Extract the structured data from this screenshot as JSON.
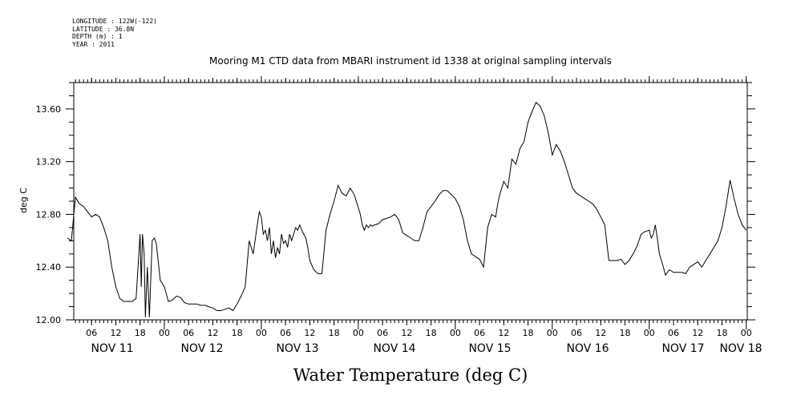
{
  "meta": {
    "longitude": "LONGITUDE : 122W(-122)",
    "latitude": "LATITUDE : 36.8N",
    "depth": "DEPTH (m) : 1",
    "year": "YEAR : 2011"
  },
  "chart_data": {
    "type": "line",
    "title": "Mooring M1 CTD data from MBARI instrument id 1338 at original sampling intervals",
    "xlabel": "Water Temperature (deg C)",
    "ylabel": "deg C",
    "ylim": [
      12.0,
      13.8
    ],
    "yticks": [
      12.0,
      12.4,
      12.8,
      13.2,
      13.6
    ],
    "ytick_labels": [
      "12.00",
      "12.40",
      "12.80",
      "13.20",
      "13.60"
    ],
    "xlim_hours": [
      0,
      170
    ],
    "hour_tick_labels": [
      "06",
      "12",
      "18",
      "00",
      "06",
      "12",
      "18",
      "00",
      "06",
      "12",
      "18",
      "00",
      "06",
      "12",
      "18",
      "00",
      "06",
      "12",
      "18",
      "00",
      "06",
      "12",
      "18",
      "00",
      "06",
      "12",
      "18",
      "00"
    ],
    "day_labels": [
      "NOV 11",
      "NOV 12",
      "NOV 13",
      "NOV 14",
      "NOV 15",
      "NOV 16",
      "NOV 17",
      "NOV 18"
    ],
    "grid": false,
    "series": [
      {
        "x": [
          0,
          1,
          2,
          3,
          4,
          5,
          6,
          7,
          8,
          9,
          10,
          11,
          12,
          13,
          14,
          15,
          16,
          17,
          18,
          18.3,
          18.6,
          19,
          19.3,
          19.8,
          20.3,
          21,
          21.5,
          22,
          23,
          24,
          25,
          26,
          27,
          28,
          29,
          30,
          31,
          32,
          33,
          34,
          35,
          36,
          37,
          38,
          39,
          40,
          41,
          42,
          43,
          44,
          45,
          46,
          47,
          47.5,
          48,
          48.5,
          49,
          49.5,
          50,
          50.5,
          51,
          51.5,
          52,
          52.5,
          53,
          53.5,
          54,
          54.5,
          55,
          55.5,
          56,
          56.5,
          57,
          57.5,
          58,
          58.5,
          59,
          59.5,
          60,
          61,
          62,
          63,
          64,
          65,
          66,
          67,
          68,
          69,
          70,
          71,
          72,
          72.5,
          73,
          73.5,
          74,
          74.5,
          75,
          75.5,
          76,
          77,
          78,
          79,
          80,
          81,
          82,
          83,
          84,
          85,
          86,
          87,
          88,
          89,
          90,
          91,
          92,
          93,
          94,
          95,
          96,
          97,
          98,
          99,
          100,
          101,
          102,
          103,
          104,
          105,
          106,
          106.5,
          107,
          108,
          109,
          110,
          111,
          112,
          113,
          114,
          115,
          116,
          117,
          118,
          119,
          120,
          121,
          122,
          123,
          124,
          125,
          126,
          127,
          128,
          129,
          130,
          131,
          132,
          133,
          134,
          135,
          136,
          137,
          138,
          139,
          140,
          141,
          142,
          143,
          144,
          144.5,
          145,
          145.5,
          146,
          146.5,
          147,
          147.5,
          148,
          149,
          150,
          151,
          152,
          153,
          154,
          155,
          156,
          157,
          158,
          159,
          160,
          161,
          162,
          163,
          164,
          165,
          166,
          167,
          168
        ],
        "y": [
          12.62,
          12.6,
          12.93,
          12.88,
          12.86,
          12.82,
          12.78,
          12.8,
          12.78,
          12.7,
          12.6,
          12.4,
          12.25,
          12.16,
          12.14,
          12.14,
          12.14,
          12.16,
          12.65,
          12.25,
          12.65,
          12.5,
          12.02,
          12.4,
          12.02,
          12.6,
          12.62,
          12.58,
          12.3,
          12.25,
          12.14,
          12.15,
          12.18,
          12.17,
          12.13,
          12.12,
          12.12,
          12.12,
          12.11,
          12.11,
          12.1,
          12.09,
          12.07,
          12.07,
          12.08,
          12.09,
          12.07,
          12.12,
          12.18,
          12.25,
          12.6,
          12.5,
          12.72,
          12.82,
          12.78,
          12.65,
          12.68,
          12.6,
          12.7,
          12.5,
          12.6,
          12.47,
          12.55,
          12.5,
          12.65,
          12.58,
          12.6,
          12.55,
          12.65,
          12.6,
          12.65,
          12.7,
          12.68,
          12.72,
          12.68,
          12.65,
          12.62,
          12.55,
          12.45,
          12.38,
          12.35,
          12.35,
          12.68,
          12.8,
          12.9,
          13.02,
          12.96,
          12.94,
          13.0,
          12.95,
          12.85,
          12.8,
          12.72,
          12.68,
          12.72,
          12.7,
          12.72,
          12.71,
          12.72,
          12.73,
          12.76,
          12.77,
          12.78,
          12.8,
          12.76,
          12.66,
          12.64,
          12.62,
          12.6,
          12.6,
          12.7,
          12.82,
          12.86,
          12.9,
          12.95,
          12.98,
          12.98,
          12.95,
          12.92,
          12.86,
          12.76,
          12.6,
          12.5,
          12.48,
          12.46,
          12.4,
          12.7,
          12.8,
          12.78,
          12.88,
          12.95,
          13.05,
          13.0,
          13.22,
          13.18,
          13.3,
          13.35,
          13.5,
          13.58,
          13.65,
          13.62,
          13.55,
          13.42,
          13.25,
          13.33,
          13.28,
          13.2,
          13.1,
          13.0,
          12.96,
          12.94,
          12.92,
          12.9,
          12.88,
          12.84,
          12.78,
          12.72,
          12.45,
          12.45,
          12.45,
          12.46,
          12.42,
          12.45,
          12.5,
          12.56,
          12.65,
          12.67,
          12.68,
          12.62,
          12.65,
          12.72,
          12.62,
          12.5,
          12.45,
          12.4,
          12.34,
          12.38,
          12.36,
          12.36,
          12.36,
          12.35,
          12.4,
          12.42,
          12.44,
          12.4,
          12.45,
          12.5,
          12.55,
          12.6,
          12.7,
          12.86,
          13.06,
          12.92,
          12.8,
          12.72,
          12.68
        ]
      }
    ]
  }
}
